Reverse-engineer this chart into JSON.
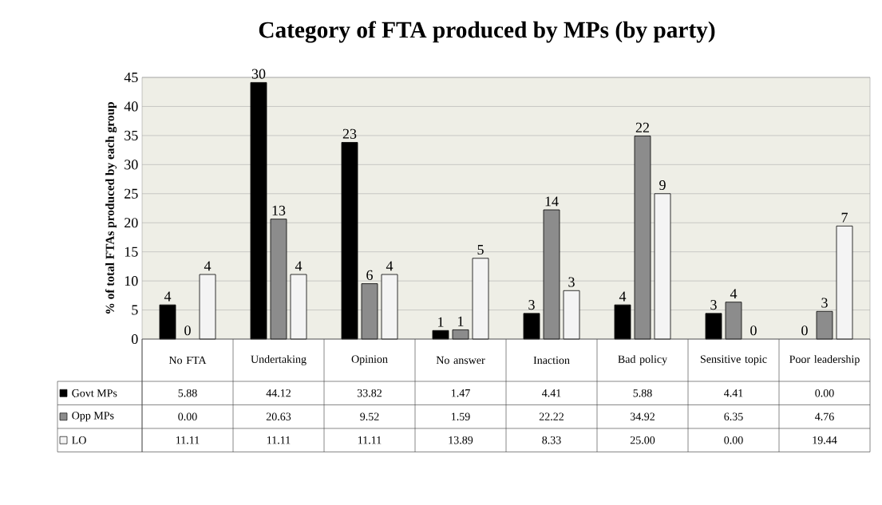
{
  "chart_data": {
    "type": "bar",
    "title": "Category of FTA produced by MPs (by party)",
    "ylabel": "% of total  FTAs produced by each group",
    "categories": [
      "No FTA",
      "Undertaking",
      "Opinion",
      "No answer",
      "Inaction",
      "Bad policy",
      "Sensitive topic",
      "Poor leadership"
    ],
    "series": [
      {
        "name": "Govt MPs",
        "color": "#000000",
        "values": [
          5.88,
          44.12,
          33.82,
          1.47,
          4.41,
          5.88,
          4.41,
          0.0
        ],
        "value_labels": [
          "5.88",
          "44.12",
          "33.82",
          "1.47",
          "4.41",
          "5.88",
          "4.41",
          "0.00"
        ]
      },
      {
        "name": "Opp MPs",
        "color": "#8c8c8c",
        "values": [
          0.0,
          20.63,
          9.52,
          1.59,
          22.22,
          34.92,
          6.35,
          4.76
        ],
        "value_labels": [
          "0.00",
          "20.63",
          "9.52",
          "1.59",
          "22.22",
          "34.92",
          "6.35",
          "4.76"
        ]
      },
      {
        "name": "LO",
        "color": "#f4f4f4",
        "values": [
          11.11,
          11.11,
          11.11,
          13.89,
          8.33,
          25.0,
          0.0,
          19.44
        ],
        "value_labels": [
          "11.11",
          "11.11",
          "11.11",
          "13.89",
          "8.33",
          "25.00",
          "0.00",
          "19.44"
        ]
      }
    ],
    "annotations": [
      "4",
      "30",
      "23",
      "1",
      "3",
      "4",
      "3",
      "0",
      "0",
      "13",
      "6",
      "1",
      "14",
      "22",
      "4",
      "3",
      "4",
      "4",
      "4",
      "5",
      "3",
      "9",
      "0",
      "7"
    ],
    "ylim": [
      0,
      45
    ],
    "yticks": [
      0,
      5,
      10,
      15,
      20,
      25,
      30,
      35,
      40,
      45
    ],
    "grid": "y",
    "legend": "bottom"
  }
}
